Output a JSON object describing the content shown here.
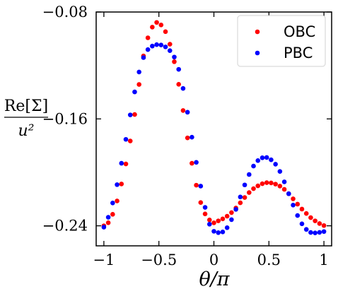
{
  "chart_data": {
    "type": "scatter",
    "title": "",
    "xlabel": "θ/π",
    "ylabel_num": "Re[Σ]",
    "ylabel_den": "u²",
    "xlim": [
      -1.07,
      1.07
    ],
    "ylim": [
      -0.255,
      -0.08
    ],
    "xticks": [
      -1,
      -0.5,
      0,
      0.5,
      1
    ],
    "xtick_labels": [
      "−1",
      "−0.5",
      "0",
      "0.5",
      "1"
    ],
    "yticks": [
      -0.08,
      -0.16,
      -0.24
    ],
    "ytick_labels": [
      "−0.08",
      "−0.16",
      "−0.24"
    ],
    "grid": false,
    "legend_position": "top-right",
    "series": [
      {
        "name": "OBC",
        "color": "#ff0000",
        "x": [
          -1.0,
          -0.96,
          -0.92,
          -0.88,
          -0.84,
          -0.8,
          -0.76,
          -0.72,
          -0.68,
          -0.64,
          -0.6,
          -0.56,
          -0.52,
          -0.48,
          -0.44,
          -0.4,
          -0.36,
          -0.32,
          -0.28,
          -0.24,
          -0.2,
          -0.16,
          -0.12,
          -0.08,
          -0.04,
          0.0,
          0.04,
          0.08,
          0.12,
          0.16,
          0.2,
          0.24,
          0.28,
          0.32,
          0.36,
          0.4,
          0.44,
          0.48,
          0.52,
          0.56,
          0.6,
          0.64,
          0.68,
          0.72,
          0.76,
          0.8,
          0.84,
          0.88,
          0.92,
          0.96,
          1.0
        ],
        "y": [
          -0.24,
          -0.2377,
          -0.2314,
          -0.2214,
          -0.2087,
          -0.1937,
          -0.1765,
          -0.1567,
          -0.1342,
          -0.1129,
          -0.0993,
          -0.0913,
          -0.0878,
          -0.0897,
          -0.0947,
          -0.1041,
          -0.1172,
          -0.1341,
          -0.1537,
          -0.1742,
          -0.1932,
          -0.2096,
          -0.2226,
          -0.2311,
          -0.2356,
          -0.2378,
          -0.2363,
          -0.2348,
          -0.2328,
          -0.2301,
          -0.2267,
          -0.2228,
          -0.2188,
          -0.2151,
          -0.2122,
          -0.2101,
          -0.2085,
          -0.2077,
          -0.2079,
          -0.2088,
          -0.2103,
          -0.2127,
          -0.216,
          -0.2198,
          -0.2238,
          -0.2275,
          -0.2308,
          -0.2339,
          -0.2363,
          -0.2383,
          -0.2398
        ]
      },
      {
        "name": "PBC",
        "color": "#0000ff",
        "x": [
          -1.0,
          -0.96,
          -0.92,
          -0.88,
          -0.84,
          -0.8,
          -0.76,
          -0.72,
          -0.68,
          -0.64,
          -0.6,
          -0.56,
          -0.52,
          -0.48,
          -0.44,
          -0.4,
          -0.36,
          -0.32,
          -0.28,
          -0.24,
          -0.2,
          -0.16,
          -0.12,
          -0.08,
          -0.04,
          0.0,
          0.04,
          0.08,
          0.12,
          0.16,
          0.2,
          0.24,
          0.28,
          0.32,
          0.36,
          0.4,
          0.44,
          0.48,
          0.52,
          0.56,
          0.6,
          0.64,
          0.68,
          0.72,
          0.76,
          0.8,
          0.84,
          0.88,
          0.92,
          0.96,
          1.0
        ],
        "y": [
          -0.241,
          -0.2336,
          -0.2229,
          -0.2092,
          -0.1932,
          -0.1753,
          -0.157,
          -0.1398,
          -0.1249,
          -0.1141,
          -0.1081,
          -0.1055,
          -0.1044,
          -0.1047,
          -0.1061,
          -0.1089,
          -0.1137,
          -0.1229,
          -0.1372,
          -0.155,
          -0.1737,
          -0.1925,
          -0.2103,
          -0.2262,
          -0.2388,
          -0.2441,
          -0.2451,
          -0.2446,
          -0.2414,
          -0.2354,
          -0.2277,
          -0.2184,
          -0.2094,
          -0.2016,
          -0.1953,
          -0.1912,
          -0.1891,
          -0.1889,
          -0.1906,
          -0.1939,
          -0.1993,
          -0.2071,
          -0.216,
          -0.2245,
          -0.2323,
          -0.2385,
          -0.2427,
          -0.245,
          -0.2453,
          -0.2449,
          -0.2443
        ]
      }
    ]
  }
}
